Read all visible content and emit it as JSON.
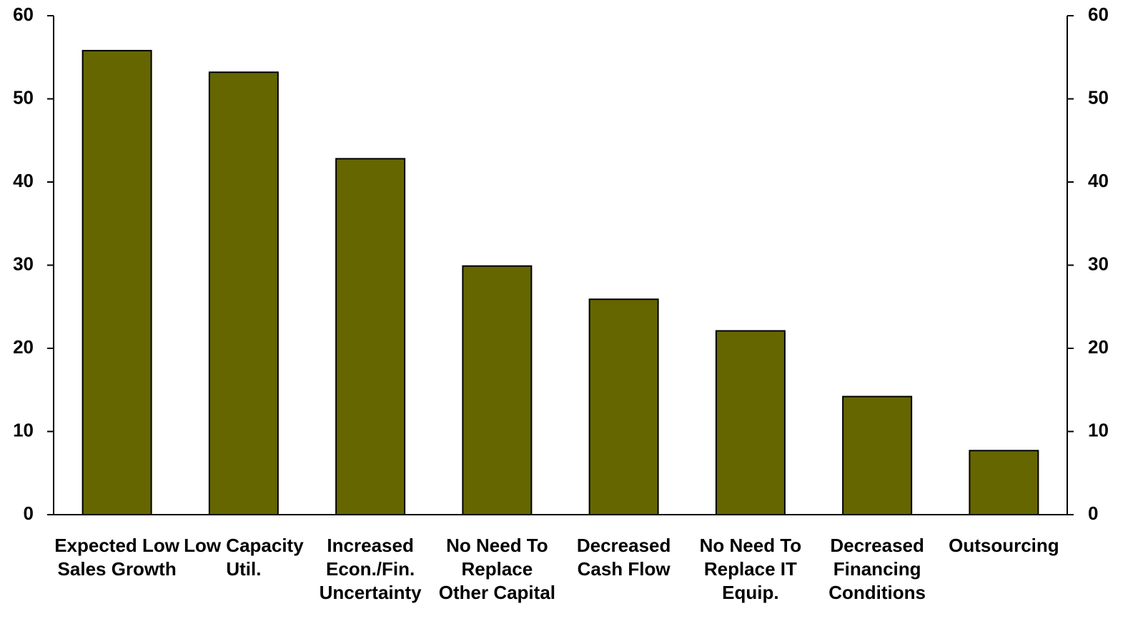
{
  "chart_data": {
    "type": "bar",
    "categories": [
      "Expected Low Sales Growth",
      "Low Capacity Util.",
      "Increased Econ./Fin. Uncertainty",
      "No Need To Replace Other Capital",
      "Decreased Cash Flow",
      "No Need To Replace IT Equip.",
      "Decreased Financing Conditions",
      "Outsourcing"
    ],
    "values": [
      55.8,
      53.2,
      42.8,
      29.9,
      25.9,
      22.1,
      14.2,
      7.7
    ],
    "color": "#666600",
    "ylim": [
      0,
      60
    ],
    "yticks": [
      0,
      10,
      20,
      30,
      40,
      50,
      60
    ],
    "y2lim": [
      0,
      60
    ],
    "y2ticks": [
      0,
      10,
      20,
      30,
      40,
      50,
      60
    ],
    "grid": false
  }
}
